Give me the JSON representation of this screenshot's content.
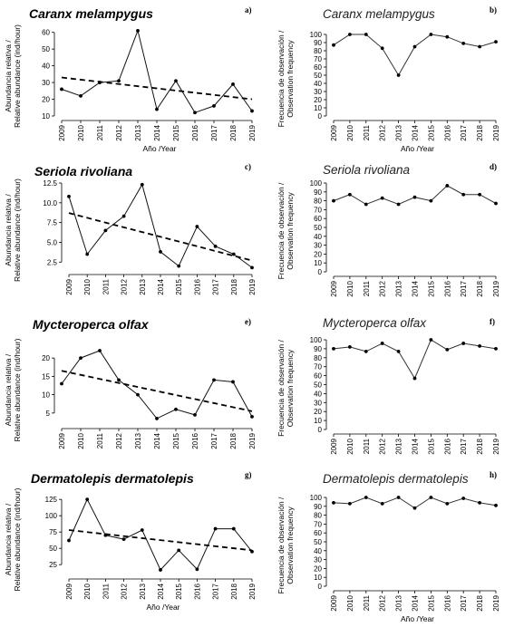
{
  "chart_data": [
    {
      "panel": "a)",
      "type": "line",
      "title": "Caranx melampygus",
      "ylabel": [
        "Abundancia relativa /",
        "Relative abundance (ind/hour)"
      ],
      "xlabel": "Año /Year",
      "x": [
        "2009",
        "2010",
        "2011",
        "2012",
        "2013",
        "2014",
        "2015",
        "2016",
        "2017",
        "2018",
        "2019"
      ],
      "yticks": [
        "10",
        "20",
        "30",
        "40",
        "50",
        "60"
      ],
      "ylim": [
        10,
        62
      ],
      "values": [
        26,
        22,
        30,
        31,
        61,
        14,
        31,
        12,
        16,
        29,
        13
      ],
      "trend": [
        33,
        20
      ]
    },
    {
      "panel": "b)",
      "type": "line",
      "title": "Caranx melampygus",
      "ylabel": [
        "Frecuencia de observación /",
        "Observation frequency"
      ],
      "xlabel": "Año /Year",
      "x": [
        "2009",
        "2010",
        "2011",
        "2012",
        "2013",
        "2014",
        "2015",
        "2016",
        "2017",
        "2018",
        "2019"
      ],
      "yticks": [
        "0",
        "10",
        "20",
        "30",
        "40",
        "50",
        "60",
        "70",
        "80",
        "90",
        "100"
      ],
      "ylim": [
        0,
        100
      ],
      "values": [
        87,
        100,
        100,
        83,
        50,
        85,
        100,
        97,
        89,
        85,
        91
      ]
    },
    {
      "panel": "c)",
      "type": "line",
      "title": "Seriola rivoliana",
      "ylabel": [
        "Abundancia relativa /",
        "Relative abundance (ind/hour)"
      ],
      "xlabel": "",
      "x": [
        "2009",
        "2010",
        "2011",
        "2012",
        "2013",
        "2014",
        "2015",
        "2016",
        "2017",
        "2018",
        "2019"
      ],
      "yticks": [
        "2.5",
        "5.0",
        "7.5",
        "10.0",
        "12.5"
      ],
      "ylim": [
        1.5,
        12.5
      ],
      "values": [
        10.8,
        3.5,
        6.5,
        8.3,
        12.3,
        3.8,
        2.0,
        7.0,
        4.5,
        3.5,
        1.8
      ],
      "trend": [
        8.7,
        2.7
      ]
    },
    {
      "panel": "d)",
      "type": "line",
      "title": "Seriola rivoliana",
      "ylabel": [
        "Frecuencia de observación /",
        "Observation frequency"
      ],
      "xlabel": "",
      "x": [
        "2009",
        "2010",
        "2011",
        "2012",
        "2013",
        "2014",
        "2015",
        "2016",
        "2017",
        "2018",
        "2019"
      ],
      "yticks": [
        "0",
        "10",
        "20",
        "30",
        "40",
        "50",
        "60",
        "70",
        "80",
        "90",
        "100"
      ],
      "ylim": [
        0,
        100
      ],
      "values": [
        80,
        87,
        76,
        83,
        76,
        84,
        80,
        97,
        87,
        87,
        77
      ]
    },
    {
      "panel": "e)",
      "type": "line",
      "title": "Mycteroperca olfax",
      "ylabel": [
        "Abundancia relativa /",
        "Relative abundance (ind/hour)"
      ],
      "xlabel": "",
      "x": [
        "2009",
        "2010",
        "2011",
        "2012",
        "2013",
        "2014",
        "2015",
        "2016",
        "2017",
        "2018",
        "2019"
      ],
      "yticks": [
        "5",
        "10",
        "15",
        "20"
      ],
      "ylim": [
        2,
        22.5
      ],
      "values": [
        13,
        20,
        22,
        14,
        10,
        3.5,
        6,
        4.5,
        14,
        13.5,
        4
      ],
      "trend": [
        16.5,
        5.5
      ]
    },
    {
      "panel": "f)",
      "type": "line",
      "title": "Mycteroperca olfax",
      "ylabel": [
        "Frecuencia de observación /",
        "Observation frequency"
      ],
      "xlabel": "",
      "x": [
        "2009",
        "2010",
        "2011",
        "2012",
        "2013",
        "2014",
        "2015",
        "2016",
        "2017",
        "2018",
        "2019"
      ],
      "yticks": [
        "0",
        "10",
        "20",
        "30",
        "40",
        "50",
        "60",
        "70",
        "80",
        "90",
        "100"
      ],
      "ylim": [
        0,
        100
      ],
      "values": [
        90,
        92,
        87,
        96,
        87,
        57,
        100,
        89,
        96,
        93,
        90
      ]
    },
    {
      "panel": "g)",
      "type": "line",
      "title": "Dermatolepis dermatolepis",
      "ylabel": [
        "Abundancia relativa /",
        "Relative abundance (ind/hour)"
      ],
      "xlabel": "Año /Year",
      "x": [
        "2009",
        "2010",
        "2011",
        "2012",
        "2013",
        "2014",
        "2015",
        "2016",
        "2017",
        "2018",
        "2019"
      ],
      "yticks": [
        "25",
        "50",
        "75",
        "100",
        "125"
      ],
      "ylim": [
        10,
        128
      ],
      "values": [
        62,
        125,
        70,
        64,
        78,
        17,
        47,
        18,
        80,
        80,
        45
      ],
      "trend": [
        78,
        47
      ]
    },
    {
      "panel": "h)",
      "type": "line",
      "title": "Dermatolepis dermatolepis",
      "ylabel": [
        "Frecuencia de observación /",
        "Observation frequency"
      ],
      "xlabel": "Año /Year",
      "x": [
        "2009",
        "2010",
        "2011",
        "2012",
        "2013",
        "2014",
        "2015",
        "2016",
        "2017",
        "2018",
        "2019"
      ],
      "yticks": [
        "0",
        "10",
        "20",
        "30",
        "40",
        "50",
        "60",
        "70",
        "80",
        "90",
        "100"
      ],
      "ylim": [
        0,
        100
      ],
      "values": [
        94,
        93,
        100,
        93,
        100,
        88,
        100,
        93,
        99,
        94,
        91
      ]
    }
  ]
}
